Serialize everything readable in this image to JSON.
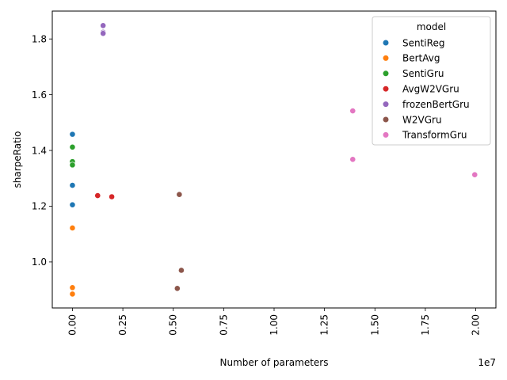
{
  "chart_data": {
    "type": "scatter",
    "title": "",
    "xlabel": "Number of parameters",
    "ylabel": "sharpeRatio",
    "x_offset_label": "1e7",
    "x_scale": 10000000,
    "xlim": [
      -1000000,
      21000000
    ],
    "ylim": [
      0.835,
      1.9
    ],
    "xticks": [
      0,
      2500000,
      5000000,
      7500000,
      10000000,
      12500000,
      15000000,
      17500000,
      20000000
    ],
    "xtick_labels": [
      "0.00",
      "0.25",
      "0.50",
      "0.75",
      "1.00",
      "1.25",
      "1.50",
      "1.75",
      "2.00"
    ],
    "yticks": [
      1.0,
      1.2,
      1.4,
      1.6,
      1.8
    ],
    "ytick_labels": [
      "1.0",
      "1.2",
      "1.4",
      "1.6",
      "1.8"
    ],
    "grid": false,
    "legend": {
      "title": "model",
      "placement": "top-right"
    },
    "series": [
      {
        "name": "SentiReg",
        "color": "#1f77b4",
        "points": [
          [
            0,
            1.458
          ],
          [
            0,
            1.275
          ],
          [
            0,
            1.205
          ]
        ]
      },
      {
        "name": "BertAvg",
        "color": "#ff7f0e",
        "points": [
          [
            0,
            1.122
          ],
          [
            0,
            0.908
          ],
          [
            0,
            0.885
          ]
        ]
      },
      {
        "name": "SentiGru",
        "color": "#2ca02c",
        "points": [
          [
            0,
            1.412
          ],
          [
            0,
            1.36
          ],
          [
            0,
            1.348
          ]
        ]
      },
      {
        "name": "AvgW2VGru",
        "color": "#d62728",
        "points": [
          [
            1250000,
            1.238
          ],
          [
            1950000,
            1.234
          ]
        ]
      },
      {
        "name": "frozenBertGru",
        "color": "#9467bd",
        "points": [
          [
            1520000,
            1.848
          ],
          [
            1520000,
            1.824
          ],
          [
            1520000,
            1.82
          ]
        ]
      },
      {
        "name": "W2VGru",
        "color": "#8c564b",
        "points": [
          [
            5300000,
            1.242
          ],
          [
            5400000,
            0.97
          ],
          [
            5200000,
            0.905
          ]
        ]
      },
      {
        "name": "TransformGru",
        "color": "#e377c2",
        "points": [
          [
            13900000,
            1.542
          ],
          [
            13900000,
            1.368
          ],
          [
            19950000,
            1.313
          ]
        ]
      }
    ]
  }
}
